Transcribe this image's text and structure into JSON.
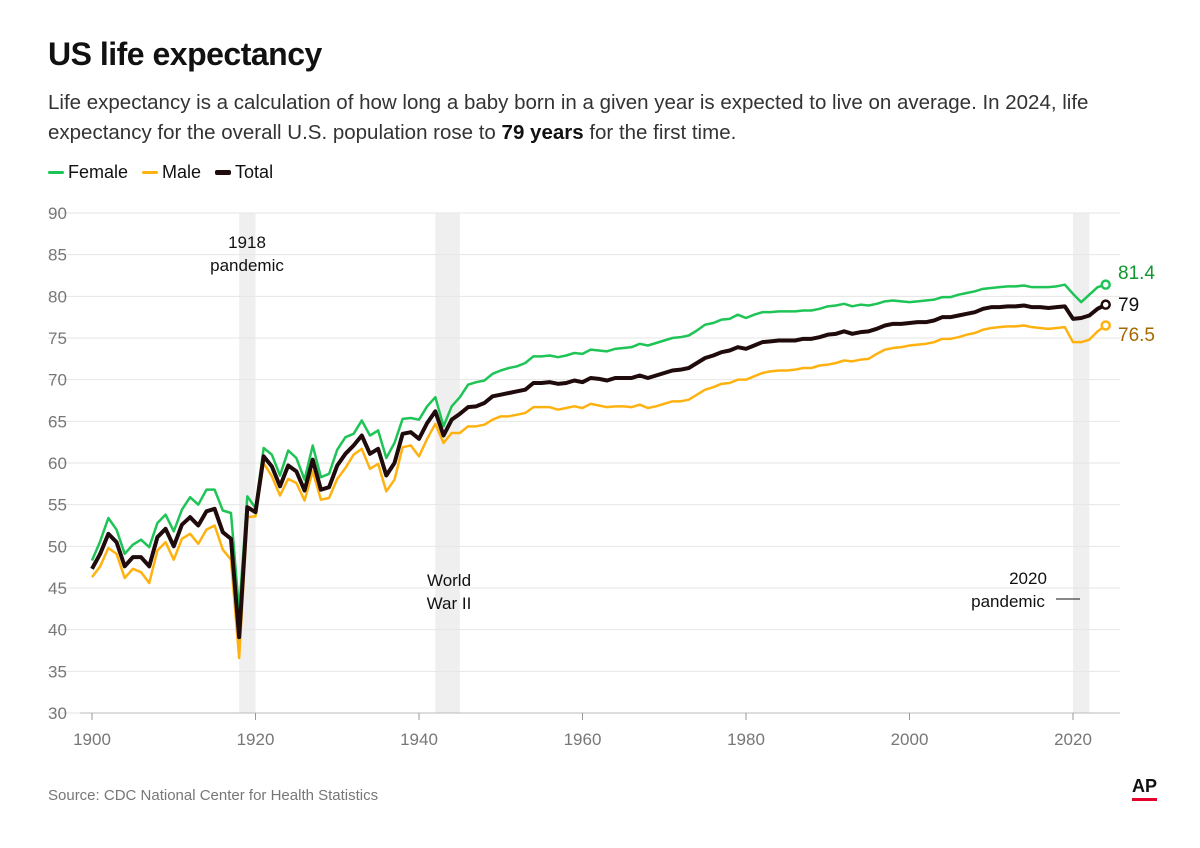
{
  "header": {
    "title": "US life expectancy",
    "subtitle_pre": "Life expectancy is a calculation of how long a baby born in a given year is expected to live on average. In 2024, life expectancy for the overall U.S. population rose to ",
    "subtitle_bold": "79 years",
    "subtitle_post": " for the first time."
  },
  "footer": {
    "source": "Source: CDC National Center for Health Statistics",
    "logo": "AP"
  },
  "chart_data": {
    "type": "line",
    "title": "US life expectancy",
    "xlabel": "",
    "ylabel": "",
    "xlim": [
      1900,
      2024
    ],
    "ylim": [
      30,
      90
    ],
    "xticks": [
      1900,
      1920,
      1940,
      1960,
      1980,
      2000,
      2020
    ],
    "yticks": [
      30,
      35,
      40,
      45,
      50,
      55,
      60,
      65,
      70,
      75,
      80,
      85,
      90
    ],
    "grid": true,
    "legend": "top-left",
    "colors": {
      "Female": "#1ec456",
      "Male": "#ffb20f",
      "Total": "#1f0b0b"
    },
    "shaded_periods": [
      {
        "range": [
          1918,
          1920
        ],
        "label": [
          "1918",
          "pandemic"
        ]
      },
      {
        "range": [
          1942,
          1945
        ],
        "label": [
          "World",
          "War II"
        ]
      },
      {
        "range": [
          2020,
          2022
        ],
        "label": [
          "2020",
          "pandemic"
        ]
      }
    ],
    "end_labels": {
      "Female": "81.4",
      "Total": "79",
      "Male": "76.5"
    },
    "x_start": 1900,
    "series": [
      {
        "name": "Female",
        "values": [
          48.3,
          50.6,
          53.4,
          52.0,
          49.1,
          50.2,
          50.8,
          49.9,
          52.8,
          53.8,
          51.8,
          54.4,
          55.9,
          55.0,
          56.8,
          56.8,
          54.3,
          54.0,
          42.2,
          56.0,
          54.6,
          61.8,
          61.0,
          58.5,
          61.5,
          60.6,
          58.0,
          62.1,
          58.3,
          58.7,
          61.6,
          63.1,
          63.5,
          65.1,
          63.3,
          63.9,
          60.6,
          62.4,
          65.3,
          65.4,
          65.2,
          66.8,
          67.9,
          64.4,
          66.8,
          67.9,
          69.4,
          69.7,
          69.9,
          70.7,
          71.1,
          71.4,
          71.6,
          72.0,
          72.8,
          72.8,
          72.9,
          72.7,
          72.9,
          73.2,
          73.1,
          73.6,
          73.5,
          73.4,
          73.7,
          73.8,
          73.9,
          74.3,
          74.1,
          74.4,
          74.7,
          75.0,
          75.1,
          75.3,
          75.9,
          76.6,
          76.8,
          77.2,
          77.3,
          77.8,
          77.4,
          77.8,
          78.1,
          78.1,
          78.2,
          78.2,
          78.2,
          78.3,
          78.3,
          78.5,
          78.8,
          78.9,
          79.1,
          78.8,
          79.0,
          78.9,
          79.1,
          79.4,
          79.5,
          79.4,
          79.3,
          79.4,
          79.5,
          79.6,
          79.9,
          79.9,
          80.2,
          80.4,
          80.6,
          80.9,
          81.0,
          81.1,
          81.2,
          81.2,
          81.3,
          81.1,
          81.1,
          81.1,
          81.2,
          81.4,
          80.3,
          79.3,
          80.2,
          81.1,
          81.4
        ]
      },
      {
        "name": "Male",
        "values": [
          46.3,
          47.6,
          49.8,
          49.1,
          46.2,
          47.3,
          46.9,
          45.6,
          49.5,
          50.5,
          48.4,
          50.9,
          51.5,
          50.3,
          52.0,
          52.5,
          49.6,
          48.4,
          36.6,
          53.5,
          53.6,
          60.0,
          58.4,
          56.1,
          58.1,
          57.6,
          55.5,
          59.0,
          55.6,
          55.8,
          58.1,
          59.4,
          61.0,
          61.7,
          59.3,
          59.9,
          56.6,
          58.0,
          61.9,
          62.1,
          60.8,
          62.9,
          64.7,
          62.4,
          63.6,
          63.6,
          64.4,
          64.4,
          64.6,
          65.2,
          65.6,
          65.6,
          65.8,
          66.0,
          66.7,
          66.7,
          66.7,
          66.4,
          66.6,
          66.8,
          66.6,
          67.1,
          66.9,
          66.7,
          66.8,
          66.8,
          66.7,
          67.0,
          66.6,
          66.8,
          67.1,
          67.4,
          67.4,
          67.6,
          68.2,
          68.8,
          69.1,
          69.5,
          69.6,
          70.0,
          70.0,
          70.4,
          70.8,
          71.0,
          71.1,
          71.1,
          71.2,
          71.4,
          71.4,
          71.7,
          71.8,
          72.0,
          72.3,
          72.2,
          72.4,
          72.5,
          73.1,
          73.6,
          73.8,
          73.9,
          74.1,
          74.2,
          74.3,
          74.5,
          74.9,
          74.9,
          75.1,
          75.4,
          75.6,
          76.0,
          76.2,
          76.3,
          76.4,
          76.4,
          76.5,
          76.3,
          76.2,
          76.1,
          76.2,
          76.3,
          74.5,
          74.5,
          74.8,
          75.8,
          76.5
        ]
      },
      {
        "name": "Total",
        "values": [
          47.3,
          49.1,
          51.5,
          50.5,
          47.6,
          48.7,
          48.7,
          47.6,
          51.1,
          52.1,
          50.0,
          52.6,
          53.5,
          52.5,
          54.2,
          54.5,
          51.7,
          50.9,
          39.1,
          54.7,
          54.1,
          60.8,
          59.6,
          57.2,
          59.7,
          59.0,
          56.7,
          60.4,
          56.8,
          57.1,
          59.7,
          61.1,
          62.1,
          63.3,
          61.1,
          61.7,
          58.5,
          60.0,
          63.5,
          63.7,
          62.9,
          64.8,
          66.2,
          63.3,
          65.2,
          65.9,
          66.7,
          66.8,
          67.2,
          68.0,
          68.2,
          68.4,
          68.6,
          68.8,
          69.6,
          69.6,
          69.7,
          69.5,
          69.6,
          69.9,
          69.7,
          70.2,
          70.1,
          69.9,
          70.2,
          70.2,
          70.2,
          70.5,
          70.2,
          70.5,
          70.8,
          71.1,
          71.2,
          71.4,
          72.0,
          72.6,
          72.9,
          73.3,
          73.5,
          73.9,
          73.7,
          74.1,
          74.5,
          74.6,
          74.7,
          74.7,
          74.7,
          74.9,
          74.9,
          75.1,
          75.4,
          75.5,
          75.8,
          75.5,
          75.7,
          75.8,
          76.1,
          76.5,
          76.7,
          76.7,
          76.8,
          76.9,
          76.9,
          77.1,
          77.5,
          77.5,
          77.7,
          77.9,
          78.1,
          78.5,
          78.7,
          78.7,
          78.8,
          78.8,
          78.9,
          78.7,
          78.7,
          78.6,
          78.7,
          78.8,
          77.3,
          77.4,
          77.7,
          78.5,
          79.0
        ]
      }
    ]
  }
}
